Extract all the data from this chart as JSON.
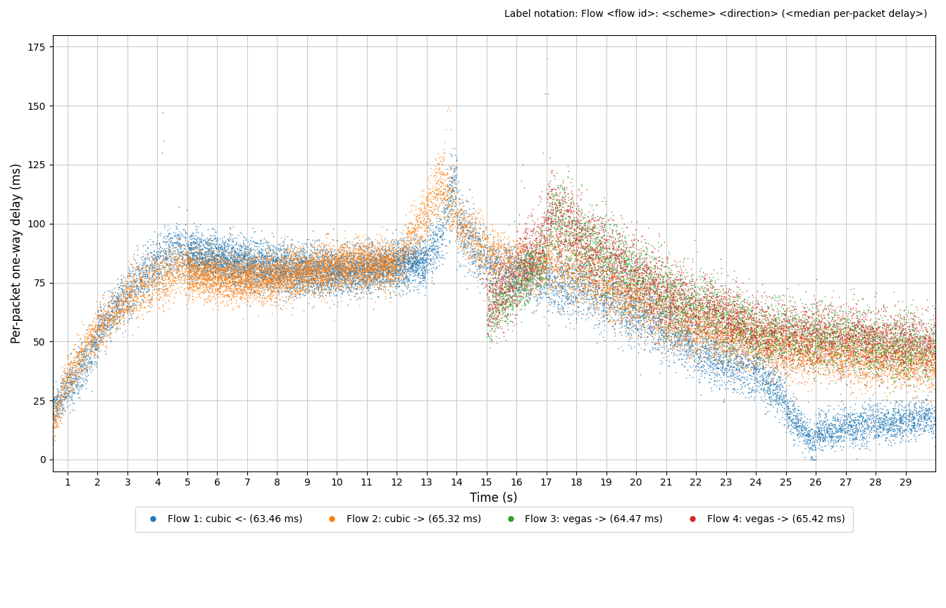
{
  "title": "Label notation: Flow <flow id>: <scheme> <direction> (<median per-packet delay>)",
  "xlabel": "Time (s)",
  "ylabel": "Per-packet one-way delay (ms)",
  "xlim": [
    0.5,
    30
  ],
  "ylim": [
    -5,
    180
  ],
  "yticks": [
    0,
    25,
    50,
    75,
    100,
    125,
    150,
    175
  ],
  "xticks": [
    1,
    2,
    3,
    4,
    5,
    6,
    7,
    8,
    9,
    10,
    11,
    12,
    13,
    14,
    15,
    16,
    17,
    18,
    19,
    20,
    21,
    22,
    23,
    24,
    25,
    26,
    27,
    28,
    29
  ],
  "flows": [
    {
      "id": 1,
      "label": "Flow 1: cubic <- (63.46 ms)",
      "color": "#1f77b4",
      "zorder": 2
    },
    {
      "id": 2,
      "label": "Flow 2: cubic -> (65.32 ms)",
      "color": "#ff7f0e",
      "zorder": 3
    },
    {
      "id": 3,
      "label": "Flow 3: vegas -> (64.47 ms)",
      "color": "#2ca02c",
      "zorder": 4
    },
    {
      "id": 4,
      "label": "Flow 4: vegas -> (65.42 ms)",
      "color": "#d62728",
      "zorder": 5
    }
  ],
  "marker_size": 1.5,
  "alpha": 0.8,
  "background_color": "#ffffff",
  "grid_color": "#cccccc",
  "title_fontsize": 10,
  "axis_fontsize": 12,
  "tick_fontsize": 10,
  "legend_fontsize": 10
}
